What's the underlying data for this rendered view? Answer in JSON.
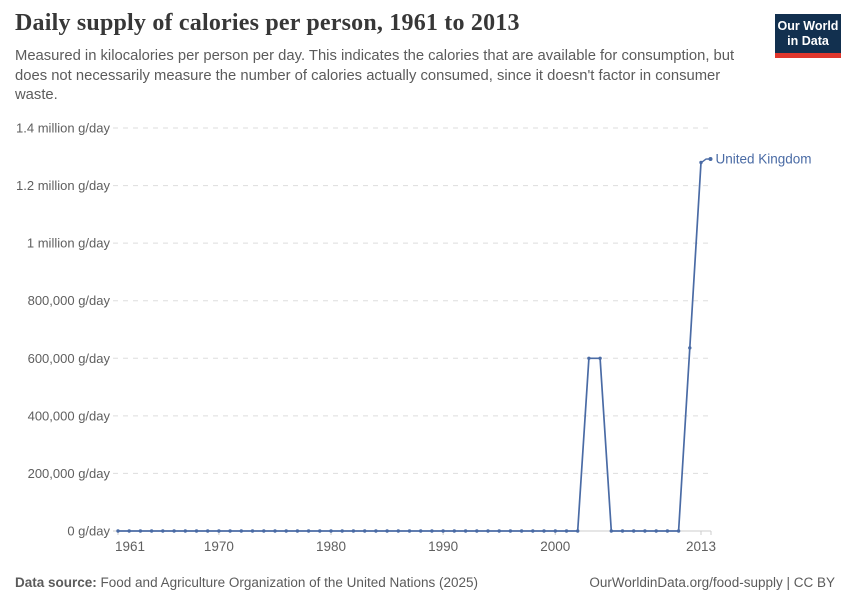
{
  "header": {
    "title": "Daily supply of calories per person, 1961 to 2013",
    "subtitle": "Measured in kilocalories per person per day. This indicates the calories that are available for consumption, but does not necessarily measure the number of calories actually consumed, since it doesn't factor in consumer waste."
  },
  "logo": {
    "line1": "Our World",
    "line2": "in Data",
    "bg_color": "#12304f",
    "bar_color": "#e0362c"
  },
  "footer": {
    "source_label": "Data source:",
    "source_text": " Food and Agriculture Organization of the United Nations (2025)",
    "link_text": "OurWorldinData.org/food-supply | CC BY"
  },
  "chart_data": {
    "type": "line",
    "title": "Daily supply of calories per person, 1961 to 2013",
    "xlabel": "",
    "ylabel": "",
    "xlim": [
      1961,
      2013
    ],
    "ylim": [
      0,
      1400000
    ],
    "grid": "horizontal-dashed",
    "legend": "inline-end-label",
    "x": [
      1961,
      1962,
      1963,
      1964,
      1965,
      1966,
      1967,
      1968,
      1969,
      1970,
      1971,
      1972,
      1973,
      1974,
      1975,
      1976,
      1977,
      1978,
      1979,
      1980,
      1981,
      1982,
      1983,
      1984,
      1985,
      1986,
      1987,
      1988,
      1989,
      1990,
      1991,
      1992,
      1993,
      1994,
      1995,
      1996,
      1997,
      1998,
      1999,
      2000,
      2001,
      2002,
      2003,
      2004,
      2005,
      2006,
      2007,
      2008,
      2009,
      2010,
      2011,
      2012,
      2013
    ],
    "series": [
      {
        "name": "United Kingdom",
        "color": "#4a6ba5",
        "values": [
          0,
          0,
          0,
          0,
          0,
          0,
          0,
          0,
          0,
          0,
          0,
          0,
          0,
          0,
          0,
          0,
          0,
          0,
          0,
          0,
          0,
          0,
          0,
          0,
          0,
          0,
          0,
          0,
          0,
          0,
          0,
          0,
          0,
          0,
          0,
          0,
          0,
          0,
          0,
          0,
          0,
          0,
          600000,
          600000,
          0,
          0,
          0,
          0,
          0,
          0,
          0,
          636000,
          1280000
        ]
      }
    ],
    "y_ticks": [
      {
        "value": 0,
        "label": "0 g/day"
      },
      {
        "value": 200000,
        "label": "200,000 g/day"
      },
      {
        "value": 400000,
        "label": "400,000 g/day"
      },
      {
        "value": 600000,
        "label": "600,000 g/day"
      },
      {
        "value": 800000,
        "label": "800,000 g/day"
      },
      {
        "value": 1000000,
        "label": "1 million g/day"
      },
      {
        "value": 1200000,
        "label": "1.2 million g/day"
      },
      {
        "value": 1400000,
        "label": "1.4 million g/day"
      }
    ],
    "x_ticks": [
      1961,
      1970,
      1980,
      1990,
      2000,
      2013
    ],
    "colors": {
      "grid": "#dddddd",
      "axis": "#cccccc",
      "tick_text": "#5f5f5f"
    }
  }
}
